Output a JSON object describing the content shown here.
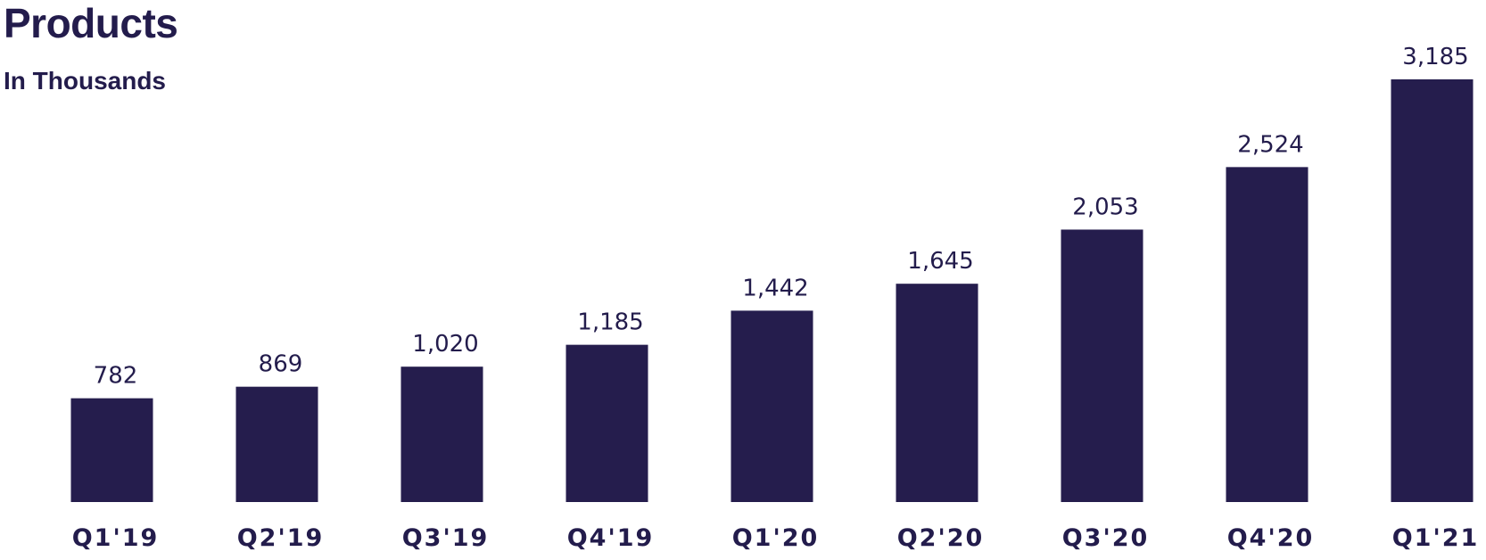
{
  "header": {
    "title": "Products",
    "subtitle": "In Thousands"
  },
  "colors": {
    "bar": "#251d4d",
    "text": "#231c4c"
  },
  "chart_data": {
    "type": "bar",
    "title": "Products",
    "subtitle": "In Thousands",
    "categories": [
      "Q1'19",
      "Q2'19",
      "Q3'19",
      "Q4'19",
      "Q1'20",
      "Q2'20",
      "Q3'20",
      "Q4'20",
      "Q1'21"
    ],
    "values": [
      782,
      869,
      1020,
      1185,
      1442,
      1645,
      2053,
      2524,
      3185
    ],
    "value_labels": [
      "782",
      "869",
      "1,020",
      "1,185",
      "1,442",
      "1,645",
      "2,053",
      "2,524",
      "3,185"
    ],
    "ylim": [
      0,
      3185
    ],
    "grid": false,
    "legend": "none"
  }
}
